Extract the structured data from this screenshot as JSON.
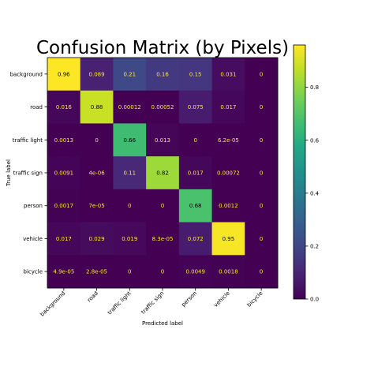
{
  "chart_data": {
    "type": "heatmap",
    "title": "Confusion Matrix (by Pixels)",
    "xlabel": "Predicted label",
    "ylabel": "True label",
    "x_categories": [
      "background",
      "road",
      "traffic light",
      "traffic sign",
      "person",
      "vehicle",
      "bicycle"
    ],
    "y_categories": [
      "background",
      "road",
      "traffic light",
      "traffic sign",
      "person",
      "vehicle",
      "bicycle"
    ],
    "values": [
      [
        0.96,
        0.089,
        0.21,
        0.16,
        0.15,
        0.031,
        0
      ],
      [
        0.016,
        0.88,
        0.00012,
        0.00052,
        0.075,
        0.017,
        0
      ],
      [
        0.0013,
        0,
        0.66,
        0.013,
        0,
        6.2e-05,
        0
      ],
      [
        0.0091,
        4e-06,
        0.11,
        0.82,
        0.017,
        0.00072,
        0
      ],
      [
        0.0017,
        7e-05,
        0,
        0,
        0.68,
        0.0012,
        0
      ],
      [
        0.017,
        0.029,
        0.019,
        8.3e-05,
        0.072,
        0.95,
        0
      ],
      [
        4.9e-05,
        2.8e-05,
        0,
        0,
        0.0049,
        0.0018,
        0
      ]
    ],
    "value_labels": [
      [
        "0.96",
        "0.089",
        "0.21",
        "0.16",
        "0.15",
        "0.031",
        "0"
      ],
      [
        "0.016",
        "0.88",
        "0.00012",
        "0.00052",
        "0.075",
        "0.017",
        "0"
      ],
      [
        "0.0013",
        "0",
        "0.66",
        "0.013",
        "0",
        "6.2e-05",
        "0"
      ],
      [
        "0.0091",
        "4e-06",
        "0.11",
        "0.82",
        "0.017",
        "0.00072",
        "0"
      ],
      [
        "0.0017",
        "7e-05",
        "0",
        "0",
        "0.68",
        "0.0012",
        "0"
      ],
      [
        "0.017",
        "0.029",
        "0.019",
        "8.3e-05",
        "0.072",
        "0.95",
        "0"
      ],
      [
        "4.9e-05",
        "2.8e-05",
        "0",
        "0",
        "0.0049",
        "0.0018",
        "0"
      ]
    ],
    "colormap": "viridis",
    "colorbar": {
      "min": 0.0,
      "max": 0.96,
      "ticks": [
        0.0,
        0.2,
        0.4,
        0.6,
        0.8
      ],
      "tick_labels": [
        "0.0",
        "0.2",
        "0.4",
        "0.6",
        "0.8"
      ]
    }
  }
}
